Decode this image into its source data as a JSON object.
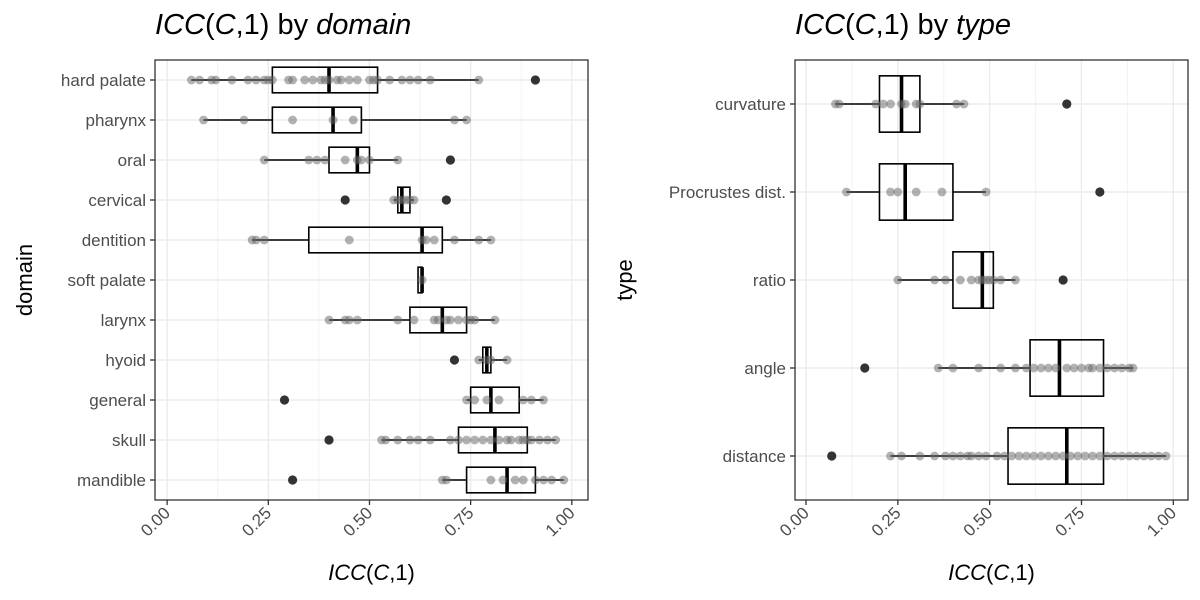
{
  "chart_data": [
    {
      "type": "boxplot",
      "title": {
        "parts": [
          {
            "text": "ICC",
            "italic": true
          },
          {
            "text": "(",
            "italic": false
          },
          {
            "text": "C",
            "italic": true
          },
          {
            "text": ",1) by ",
            "italic": false
          },
          {
            "text": "domain",
            "italic": true
          }
        ]
      },
      "xlabel": {
        "parts": [
          {
            "text": "ICC",
            "italic": true
          },
          {
            "text": "(",
            "italic": false
          },
          {
            "text": "C",
            "italic": true
          },
          {
            "text": ",1)",
            "italic": false
          }
        ]
      },
      "ylabel": "domain",
      "xlim": [
        -0.03,
        1.04
      ],
      "xticks": [
        0,
        0.25,
        0.5,
        0.75,
        1
      ],
      "xtick_labels": [
        "0.00",
        "0.25",
        "0.50",
        "0.75",
        "1.00"
      ],
      "categories": [
        "hard palate",
        "pharynx",
        "oral",
        "cervical",
        "dentition",
        "soft palate",
        "larynx",
        "hyoid",
        "general",
        "skull",
        "mandible"
      ],
      "boxes": [
        {
          "q1": 0.26,
          "median": 0.4,
          "q3": 0.52,
          "wlo": 0.06,
          "whi": 0.77,
          "outliers": [
            0.91
          ],
          "points": [
            0.06,
            0.08,
            0.11,
            0.12,
            0.16,
            0.2,
            0.22,
            0.24,
            0.25,
            0.26,
            0.3,
            0.31,
            0.34,
            0.36,
            0.38,
            0.39,
            0.4,
            0.42,
            0.43,
            0.45,
            0.47,
            0.5,
            0.51,
            0.52,
            0.55,
            0.58,
            0.6,
            0.62,
            0.65,
            0.77
          ]
        },
        {
          "q1": 0.26,
          "median": 0.41,
          "q3": 0.48,
          "wlo": 0.09,
          "whi": 0.74,
          "outliers": [],
          "points": [
            0.09,
            0.19,
            0.31,
            0.41,
            0.46,
            0.71,
            0.74
          ]
        },
        {
          "q1": 0.4,
          "median": 0.47,
          "q3": 0.5,
          "wlo": 0.24,
          "whi": 0.57,
          "outliers": [
            0.7
          ],
          "points": [
            0.24,
            0.35,
            0.37,
            0.39,
            0.44,
            0.47,
            0.48,
            0.5,
            0.57
          ]
        },
        {
          "q1": 0.57,
          "median": 0.58,
          "q3": 0.6,
          "wlo": 0.56,
          "whi": 0.61,
          "outliers": [
            0.44,
            0.69
          ],
          "points": [
            0.56,
            0.57,
            0.58,
            0.59,
            0.6,
            0.61
          ]
        },
        {
          "q1": 0.35,
          "median": 0.63,
          "q3": 0.68,
          "wlo": 0.21,
          "whi": 0.8,
          "outliers": [],
          "points": [
            0.21,
            0.22,
            0.24,
            0.45,
            0.63,
            0.64,
            0.66,
            0.71,
            0.77,
            0.8
          ]
        },
        {
          "q1": 0.62,
          "median": 0.63,
          "q3": 0.63,
          "wlo": 0.62,
          "whi": 0.63,
          "outliers": [],
          "points": [
            0.63
          ]
        },
        {
          "q1": 0.6,
          "median": 0.68,
          "q3": 0.74,
          "wlo": 0.4,
          "whi": 0.81,
          "outliers": [],
          "points": [
            0.4,
            0.44,
            0.45,
            0.47,
            0.57,
            0.61,
            0.66,
            0.67,
            0.69,
            0.7,
            0.72,
            0.74,
            0.75,
            0.76,
            0.81
          ]
        },
        {
          "q1": 0.78,
          "median": 0.79,
          "q3": 0.8,
          "wlo": 0.77,
          "whi": 0.84,
          "outliers": [
            0.71
          ],
          "points": [
            0.77,
            0.79,
            0.8,
            0.84
          ]
        },
        {
          "q1": 0.75,
          "median": 0.8,
          "q3": 0.87,
          "wlo": 0.74,
          "whi": 0.93,
          "outliers": [
            0.29
          ],
          "points": [
            0.74,
            0.76,
            0.79,
            0.82,
            0.88,
            0.9,
            0.93
          ]
        },
        {
          "q1": 0.72,
          "median": 0.81,
          "q3": 0.89,
          "wlo": 0.53,
          "whi": 0.96,
          "outliers": [
            0.4
          ],
          "points": [
            0.53,
            0.54,
            0.57,
            0.6,
            0.62,
            0.65,
            0.7,
            0.72,
            0.74,
            0.76,
            0.78,
            0.8,
            0.82,
            0.84,
            0.85,
            0.87,
            0.88,
            0.89,
            0.9,
            0.92,
            0.94,
            0.96
          ]
        },
        {
          "q1": 0.74,
          "median": 0.84,
          "q3": 0.91,
          "wlo": 0.68,
          "whi": 0.98,
          "outliers": [
            0.31
          ],
          "points": [
            0.68,
            0.69,
            0.8,
            0.83,
            0.86,
            0.88,
            0.91,
            0.93,
            0.95,
            0.98
          ]
        }
      ],
      "grid": true
    },
    {
      "type": "boxplot",
      "title": {
        "parts": [
          {
            "text": "ICC",
            "italic": true
          },
          {
            "text": "(",
            "italic": false
          },
          {
            "text": "C",
            "italic": true
          },
          {
            "text": ",1) by ",
            "italic": false
          },
          {
            "text": "type",
            "italic": true
          }
        ]
      },
      "xlabel": {
        "parts": [
          {
            "text": "ICC",
            "italic": true
          },
          {
            "text": "(",
            "italic": false
          },
          {
            "text": "C",
            "italic": true
          },
          {
            "text": ",1)",
            "italic": false
          }
        ]
      },
      "ylabel": "type",
      "xlim": [
        -0.03,
        1.04
      ],
      "xticks": [
        0,
        0.25,
        0.5,
        0.75,
        1
      ],
      "xtick_labels": [
        "0.00",
        "0.25",
        "0.50",
        "0.75",
        "1.00"
      ],
      "categories": [
        "curvature",
        "Procrustes dist.",
        "ratio",
        "angle",
        "distance"
      ],
      "boxes": [
        {
          "q1": 0.2,
          "median": 0.26,
          "q3": 0.31,
          "wlo": 0.08,
          "whi": 0.43,
          "outliers": [
            0.71
          ],
          "points": [
            0.08,
            0.09,
            0.19,
            0.21,
            0.23,
            0.26,
            0.27,
            0.3,
            0.31,
            0.41,
            0.43
          ]
        },
        {
          "q1": 0.2,
          "median": 0.27,
          "q3": 0.4,
          "wlo": 0.11,
          "whi": 0.49,
          "outliers": [
            0.8
          ],
          "points": [
            0.11,
            0.23,
            0.25,
            0.3,
            0.37,
            0.49
          ]
        },
        {
          "q1": 0.4,
          "median": 0.48,
          "q3": 0.51,
          "wlo": 0.25,
          "whi": 0.57,
          "outliers": [
            0.7
          ],
          "points": [
            0.25,
            0.35,
            0.38,
            0.42,
            0.45,
            0.47,
            0.48,
            0.49,
            0.5,
            0.51,
            0.53,
            0.57
          ]
        },
        {
          "q1": 0.61,
          "median": 0.69,
          "q3": 0.81,
          "wlo": 0.36,
          "whi": 0.89,
          "outliers": [
            0.16
          ],
          "points": [
            0.36,
            0.4,
            0.47,
            0.53,
            0.57,
            0.6,
            0.62,
            0.64,
            0.66,
            0.68,
            0.71,
            0.73,
            0.75,
            0.77,
            0.78,
            0.8,
            0.82,
            0.84,
            0.86,
            0.88,
            0.89
          ]
        },
        {
          "q1": 0.55,
          "median": 0.71,
          "q3": 0.81,
          "wlo": 0.23,
          "whi": 0.98,
          "outliers": [
            0.07
          ],
          "points": [
            0.23,
            0.26,
            0.31,
            0.35,
            0.38,
            0.4,
            0.42,
            0.44,
            0.45,
            0.47,
            0.49,
            0.52,
            0.54,
            0.56,
            0.58,
            0.6,
            0.62,
            0.64,
            0.66,
            0.68,
            0.7,
            0.72,
            0.74,
            0.76,
            0.78,
            0.8,
            0.82,
            0.84,
            0.86,
            0.88,
            0.9,
            0.92,
            0.94,
            0.96,
            0.98
          ]
        }
      ],
      "grid": true
    }
  ]
}
